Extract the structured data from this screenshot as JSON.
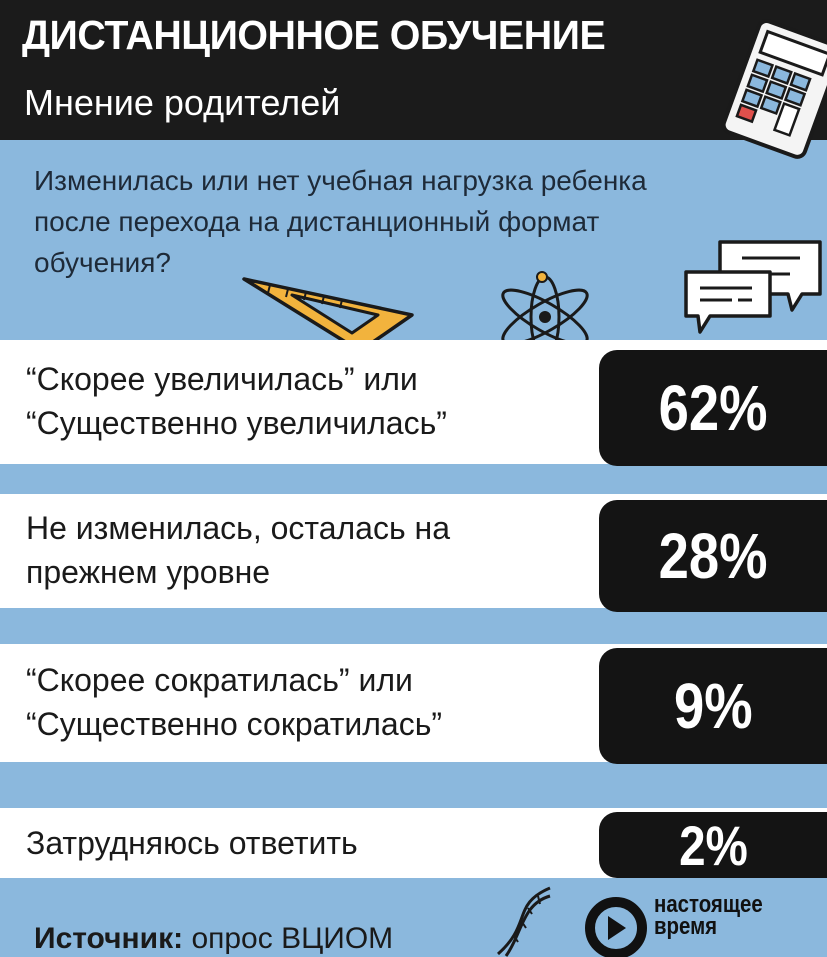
{
  "header": {
    "title": "ДИСТАНЦИОННОЕ ОБУЧЕНИЕ",
    "subtitle": "Мнение родителей"
  },
  "question": "Изменилась или нет учебная нагрузка ребенка после перехода на дистанционный формат обучения?",
  "chart_data": {
    "type": "bar",
    "categories": [
      "“Скорее увеличилась” или\n“Существенно увеличилась”",
      "Не изменилась, осталась на\nпрежнем уровне",
      "“Скорее сократилась” или\n“Существенно сократилась”",
      "Затрудняюсь ответить"
    ],
    "values": [
      62,
      28,
      9,
      2
    ],
    "value_labels": [
      "62%",
      "28%",
      "9%",
      "2%"
    ]
  },
  "source": {
    "label": "Источник:",
    "text": " опрос ВЦИОМ"
  },
  "logo": {
    "line1": "настоящее",
    "line2": "время"
  },
  "colors": {
    "background": "#8bb8dd",
    "header": "#1b1b1b",
    "badge": "#141414",
    "row": "#ffffff"
  },
  "icons": [
    "calculator-icon",
    "triangle-ruler-icon",
    "atom-icon",
    "chat-bubbles-icon",
    "dna-icon",
    "logo-icon"
  ]
}
